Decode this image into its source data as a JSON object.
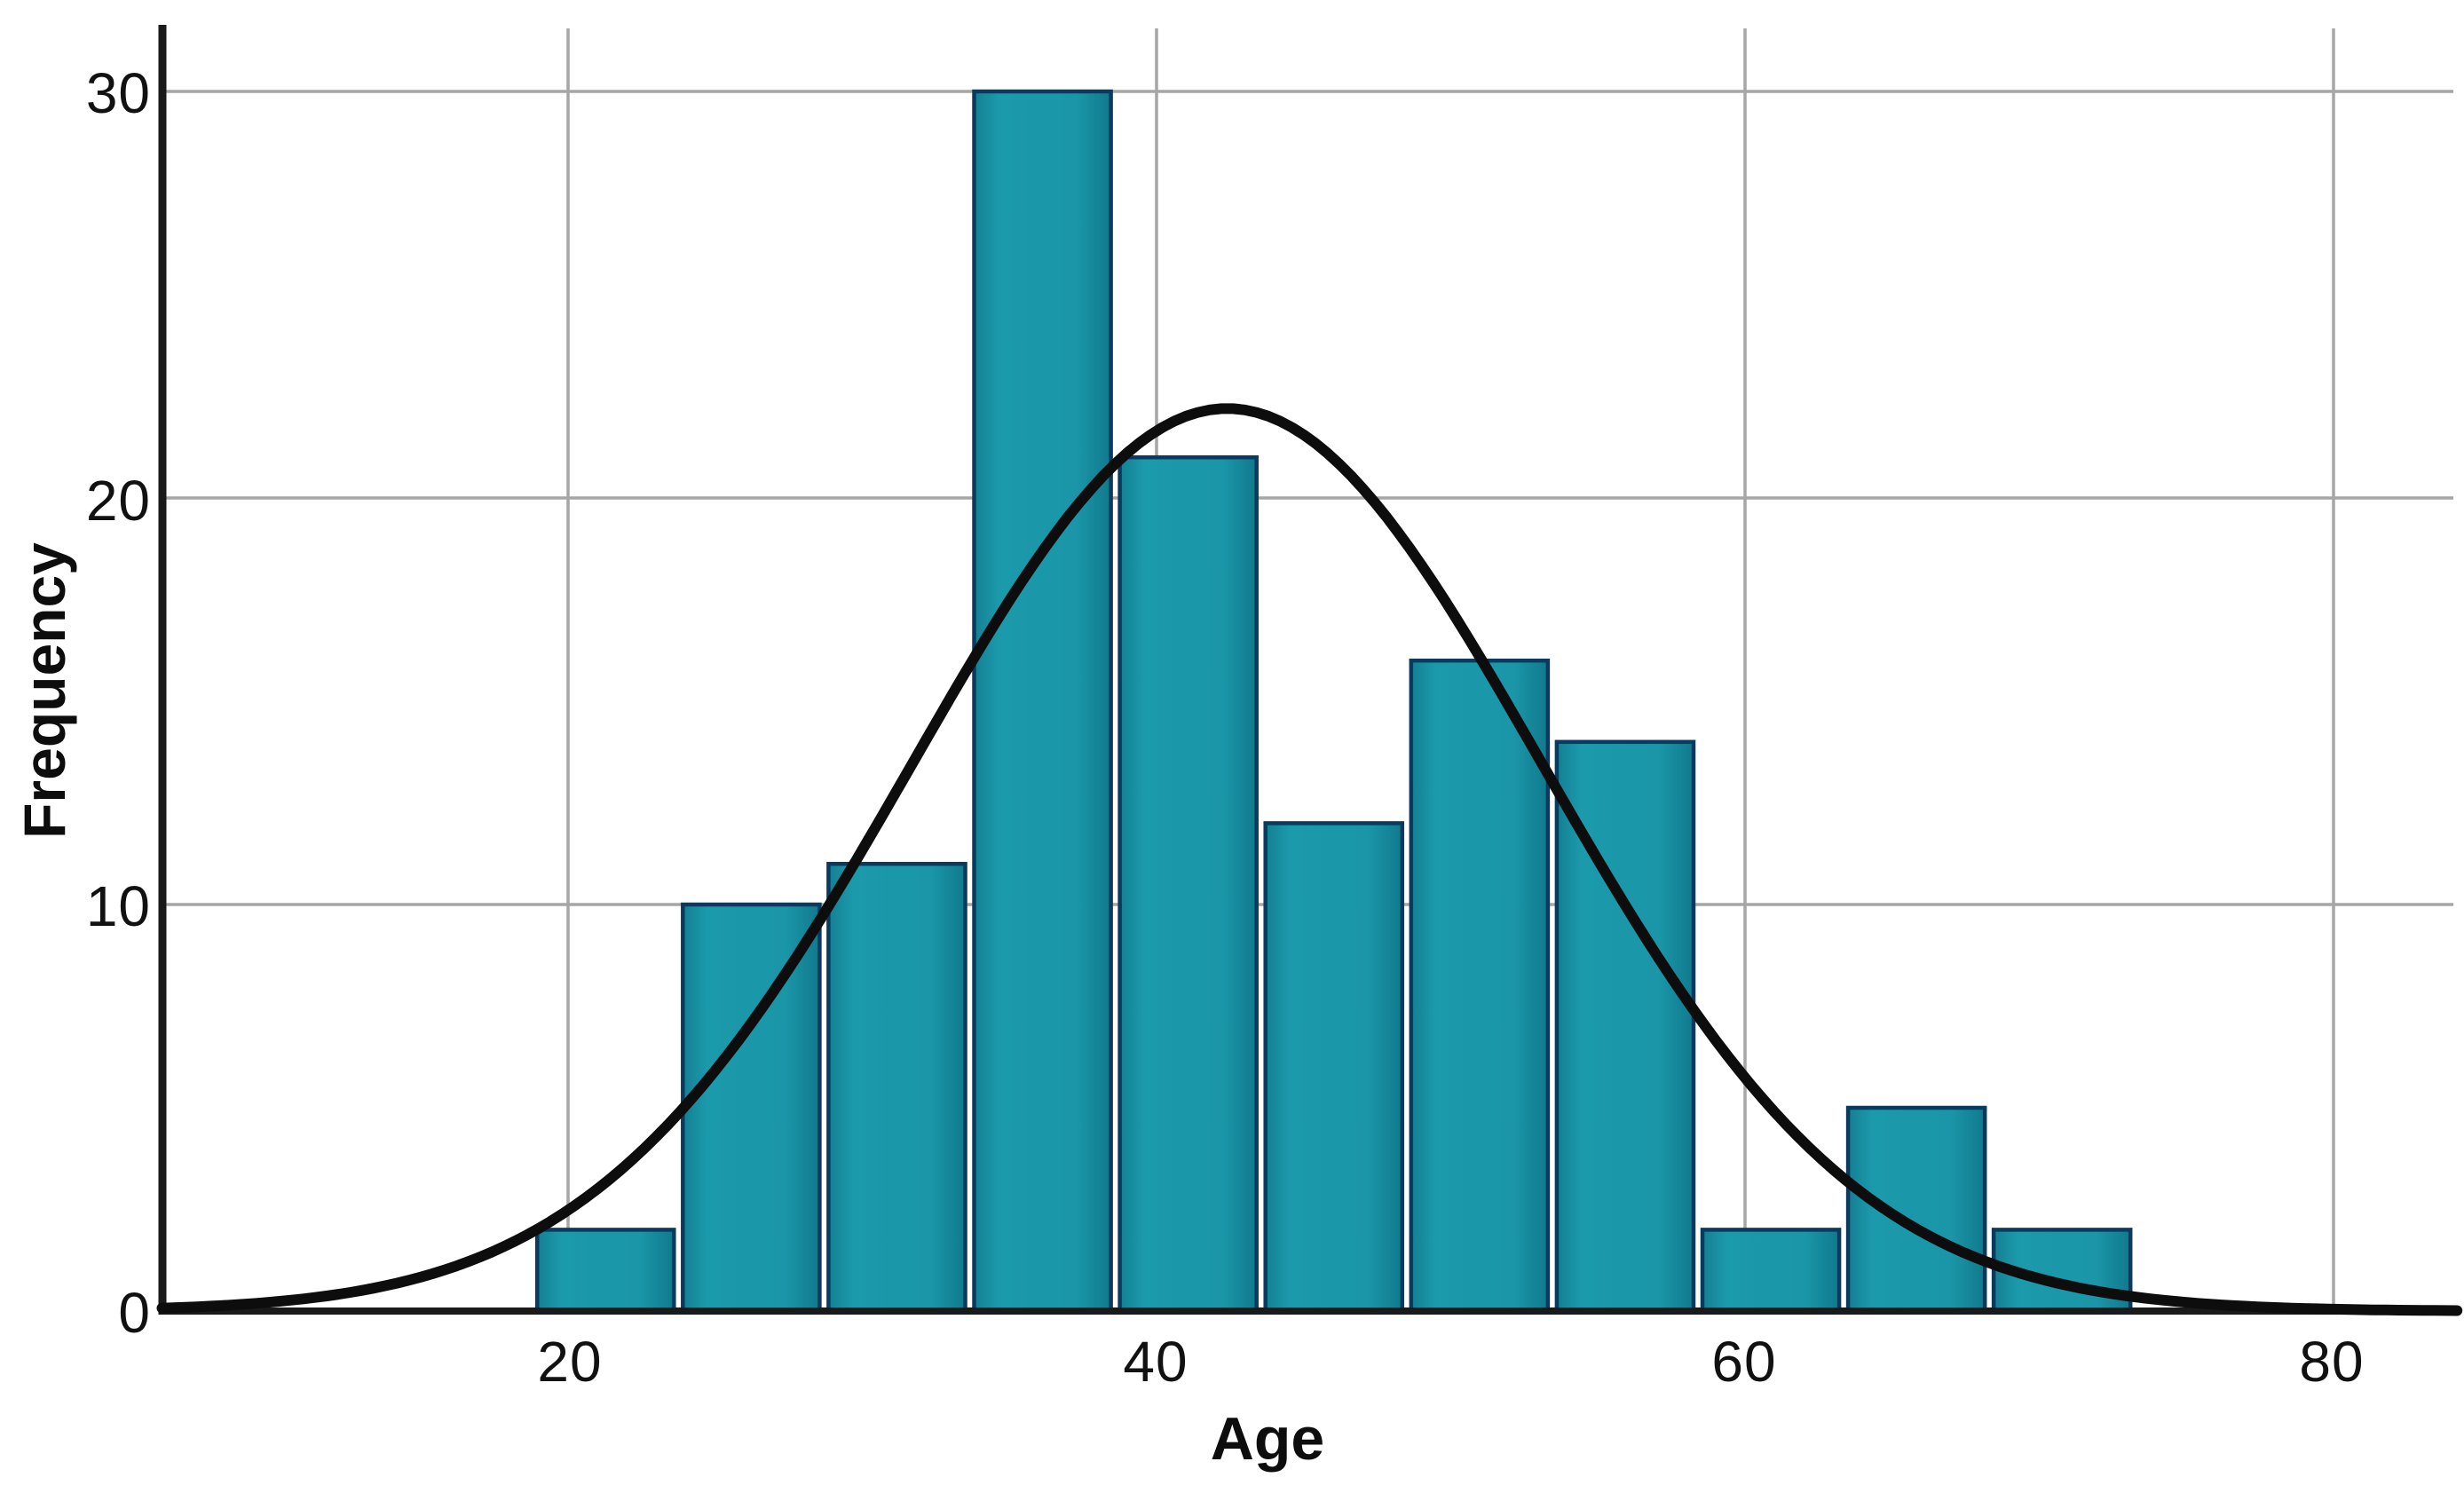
{
  "chart_data": {
    "type": "bar",
    "subtype": "histogram-with-normal-curve",
    "title": "",
    "xlabel": "Age",
    "ylabel": "Frequency",
    "x_ticks": [
      20,
      40,
      60,
      80
    ],
    "y_ticks": [
      0,
      10,
      20,
      30
    ],
    "x_tick_labels": [
      "20",
      "40",
      "60",
      "80"
    ],
    "y_tick_labels": [
      "0",
      "10",
      "20",
      "30"
    ],
    "xlim": [
      6.2,
      84.3
    ],
    "ylim": [
      0,
      32
    ],
    "grid": true,
    "bin_edges": [
      18.8,
      23.75,
      28.7,
      33.65,
      38.6,
      43.55,
      48.5,
      53.45,
      58.4,
      63.35,
      68.3,
      73.25
    ],
    "frequencies": [
      2,
      10,
      11,
      30,
      21,
      12,
      16,
      14,
      2,
      5,
      2
    ],
    "total_n": 125,
    "normal_curve": {
      "mean": 42.4,
      "sd": 10.7,
      "peak": 22.2
    },
    "legend": null,
    "colors": {
      "bar_fill": "#1a96a8",
      "bar_fill_light": "#1b9aac",
      "bar_fill_dark": "#11798d",
      "bar_stroke": "#0a3a5e",
      "curve": "#0d0d0d",
      "grid": "#a6a6a6",
      "axis": "#1a1a1a",
      "text": "#111111",
      "background": "#ffffff"
    }
  }
}
